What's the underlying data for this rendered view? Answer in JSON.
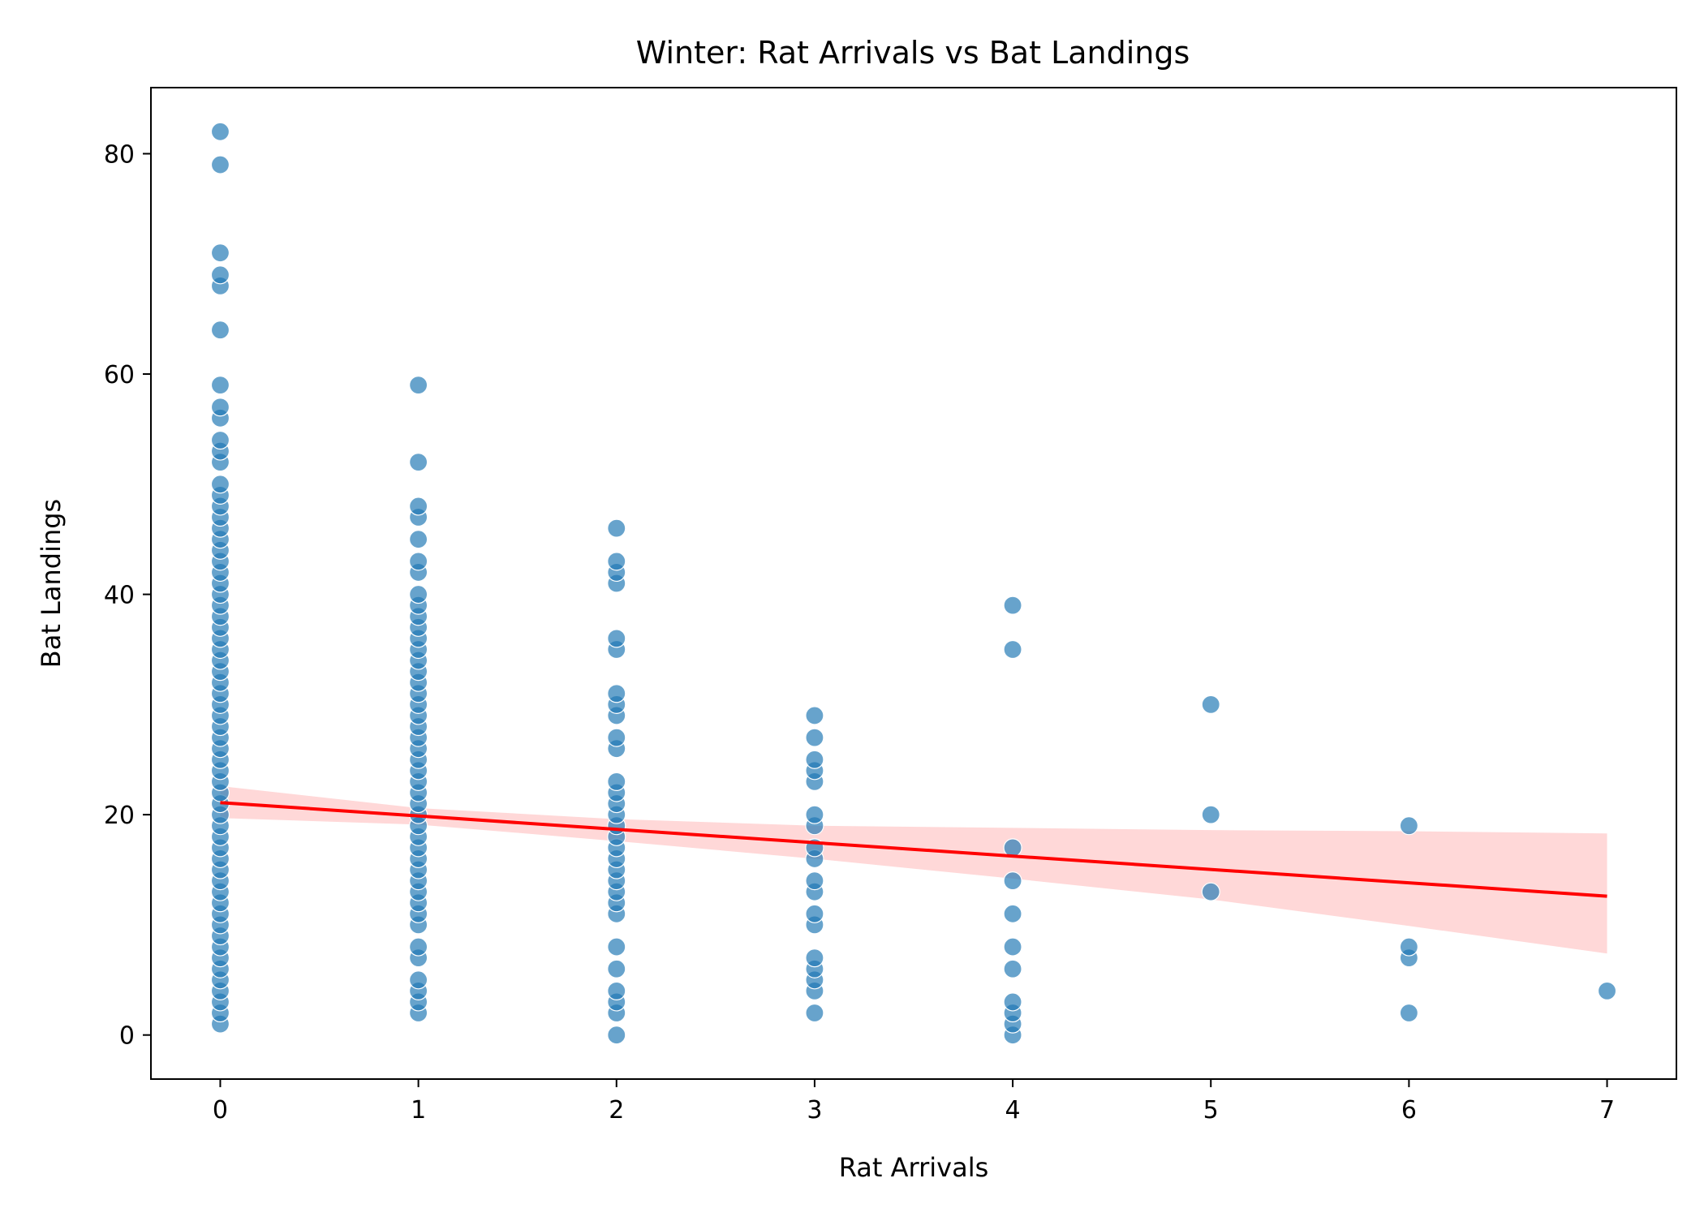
{
  "chart_data": {
    "type": "scatter",
    "title": "Winter: Rat Arrivals vs Bat Landings",
    "xlabel": "Rat Arrivals",
    "ylabel": "Bat Landings",
    "xlim": [
      -0.35,
      7.35
    ],
    "ylim": [
      -4,
      86
    ],
    "xticks": [
      0,
      1,
      2,
      3,
      4,
      5,
      6,
      7
    ],
    "yticks": [
      0,
      20,
      40,
      60,
      80
    ],
    "grid": false,
    "legend": "none",
    "colors": {
      "points": "#1f77b4",
      "regression_line": "#ff0000",
      "confidence_band": "#ff9999"
    },
    "series": [
      {
        "kind": "points",
        "points": [
          [
            0,
            1
          ],
          [
            0,
            2
          ],
          [
            0,
            3
          ],
          [
            0,
            4
          ],
          [
            0,
            5
          ],
          [
            0,
            6
          ],
          [
            0,
            7
          ],
          [
            0,
            8
          ],
          [
            0,
            9
          ],
          [
            0,
            10
          ],
          [
            0,
            11
          ],
          [
            0,
            12
          ],
          [
            0,
            13
          ],
          [
            0,
            14
          ],
          [
            0,
            15
          ],
          [
            0,
            16
          ],
          [
            0,
            17
          ],
          [
            0,
            18
          ],
          [
            0,
            19
          ],
          [
            0,
            20
          ],
          [
            0,
            21
          ],
          [
            0,
            22
          ],
          [
            0,
            23
          ],
          [
            0,
            24
          ],
          [
            0,
            25
          ],
          [
            0,
            26
          ],
          [
            0,
            27
          ],
          [
            0,
            28
          ],
          [
            0,
            29
          ],
          [
            0,
            30
          ],
          [
            0,
            31
          ],
          [
            0,
            32
          ],
          [
            0,
            33
          ],
          [
            0,
            34
          ],
          [
            0,
            35
          ],
          [
            0,
            36
          ],
          [
            0,
            37
          ],
          [
            0,
            38
          ],
          [
            0,
            39
          ],
          [
            0,
            40
          ],
          [
            0,
            41
          ],
          [
            0,
            42
          ],
          [
            0,
            43
          ],
          [
            0,
            44
          ],
          [
            0,
            45
          ],
          [
            0,
            46
          ],
          [
            0,
            47
          ],
          [
            0,
            48
          ],
          [
            0,
            49
          ],
          [
            0,
            50
          ],
          [
            0,
            52
          ],
          [
            0,
            53
          ],
          [
            0,
            54
          ],
          [
            0,
            56
          ],
          [
            0,
            57
          ],
          [
            0,
            59
          ],
          [
            0,
            64
          ],
          [
            0,
            68
          ],
          [
            0,
            69
          ],
          [
            0,
            71
          ],
          [
            0,
            79
          ],
          [
            0,
            82
          ],
          [
            1,
            2
          ],
          [
            1,
            3
          ],
          [
            1,
            4
          ],
          [
            1,
            5
          ],
          [
            1,
            7
          ],
          [
            1,
            8
          ],
          [
            1,
            10
          ],
          [
            1,
            11
          ],
          [
            1,
            12
          ],
          [
            1,
            13
          ],
          [
            1,
            14
          ],
          [
            1,
            15
          ],
          [
            1,
            16
          ],
          [
            1,
            17
          ],
          [
            1,
            18
          ],
          [
            1,
            19
          ],
          [
            1,
            20
          ],
          [
            1,
            21
          ],
          [
            1,
            22
          ],
          [
            1,
            23
          ],
          [
            1,
            24
          ],
          [
            1,
            25
          ],
          [
            1,
            26
          ],
          [
            1,
            27
          ],
          [
            1,
            28
          ],
          [
            1,
            29
          ],
          [
            1,
            30
          ],
          [
            1,
            31
          ],
          [
            1,
            32
          ],
          [
            1,
            33
          ],
          [
            1,
            34
          ],
          [
            1,
            35
          ],
          [
            1,
            36
          ],
          [
            1,
            37
          ],
          [
            1,
            38
          ],
          [
            1,
            39
          ],
          [
            1,
            40
          ],
          [
            1,
            42
          ],
          [
            1,
            43
          ],
          [
            1,
            45
          ],
          [
            1,
            47
          ],
          [
            1,
            48
          ],
          [
            1,
            52
          ],
          [
            1,
            59
          ],
          [
            2,
            0
          ],
          [
            2,
            2
          ],
          [
            2,
            3
          ],
          [
            2,
            4
          ],
          [
            2,
            6
          ],
          [
            2,
            8
          ],
          [
            2,
            11
          ],
          [
            2,
            12
          ],
          [
            2,
            13
          ],
          [
            2,
            14
          ],
          [
            2,
            15
          ],
          [
            2,
            16
          ],
          [
            2,
            17
          ],
          [
            2,
            18
          ],
          [
            2,
            19
          ],
          [
            2,
            20
          ],
          [
            2,
            21
          ],
          [
            2,
            22
          ],
          [
            2,
            23
          ],
          [
            2,
            26
          ],
          [
            2,
            27
          ],
          [
            2,
            29
          ],
          [
            2,
            30
          ],
          [
            2,
            31
          ],
          [
            2,
            35
          ],
          [
            2,
            36
          ],
          [
            2,
            41
          ],
          [
            2,
            42
          ],
          [
            2,
            43
          ],
          [
            2,
            46
          ],
          [
            3,
            2
          ],
          [
            3,
            4
          ],
          [
            3,
            5
          ],
          [
            3,
            6
          ],
          [
            3,
            7
          ],
          [
            3,
            10
          ],
          [
            3,
            11
          ],
          [
            3,
            13
          ],
          [
            3,
            14
          ],
          [
            3,
            16
          ],
          [
            3,
            17
          ],
          [
            3,
            19
          ],
          [
            3,
            20
          ],
          [
            3,
            23
          ],
          [
            3,
            24
          ],
          [
            3,
            25
          ],
          [
            3,
            27
          ],
          [
            3,
            29
          ],
          [
            4,
            0
          ],
          [
            4,
            1
          ],
          [
            4,
            2
          ],
          [
            4,
            3
          ],
          [
            4,
            6
          ],
          [
            4,
            8
          ],
          [
            4,
            11
          ],
          [
            4,
            14
          ],
          [
            4,
            17
          ],
          [
            4,
            35
          ],
          [
            4,
            39
          ],
          [
            5,
            13
          ],
          [
            5,
            20
          ],
          [
            5,
            30
          ],
          [
            6,
            2
          ],
          [
            6,
            7
          ],
          [
            6,
            8
          ],
          [
            6,
            19
          ],
          [
            7,
            4
          ]
        ]
      },
      {
        "kind": "regression",
        "line": [
          [
            0,
            21.1
          ],
          [
            7,
            12.6
          ]
        ],
        "ci_lower": [
          [
            0,
            19.7
          ],
          [
            1,
            19.1
          ],
          [
            2,
            17.6
          ],
          [
            3,
            16.0
          ],
          [
            4,
            14.2
          ],
          [
            5,
            12.3
          ],
          [
            6,
            9.9
          ],
          [
            7,
            7.4
          ]
        ],
        "ci_upper": [
          [
            0,
            22.6
          ],
          [
            1,
            20.6
          ],
          [
            2,
            19.6
          ],
          [
            3,
            19.0
          ],
          [
            4,
            18.8
          ],
          [
            5,
            18.6
          ],
          [
            6,
            18.5
          ],
          [
            7,
            18.3
          ]
        ]
      }
    ]
  }
}
